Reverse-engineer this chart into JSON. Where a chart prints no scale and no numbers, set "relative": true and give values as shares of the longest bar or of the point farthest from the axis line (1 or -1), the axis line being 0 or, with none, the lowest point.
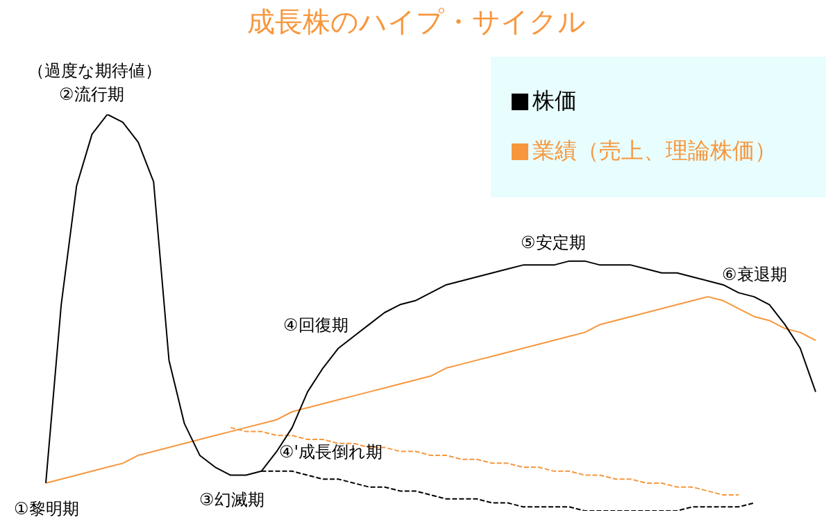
{
  "chart_data": {
    "type": "line",
    "title": "成長株のハイプ・サイクル",
    "relative": true,
    "legend": "top right",
    "marker": "none",
    "categories": [
      null,
      null,
      null,
      null,
      null,
      null,
      null,
      null,
      null,
      null,
      null,
      null,
      null,
      null,
      null,
      null,
      null,
      null,
      null,
      null,
      null,
      null,
      null,
      null,
      null,
      null,
      null,
      null,
      null,
      null,
      null,
      null,
      null,
      null,
      null,
      null,
      null,
      null,
      null,
      null,
      null,
      null,
      null,
      null,
      null,
      null,
      null,
      null,
      null,
      null,
      null
    ],
    "series": [
      {
        "name": "株価",
        "color": "#000000",
        "line_style": "solid",
        "values": [
          0.07,
          0.52,
          0.82,
          0.95,
          1.0,
          0.98,
          0.93,
          0.83,
          0.38,
          0.22,
          0.14,
          0.11,
          0.09,
          0.09,
          0.1,
          0.15,
          0.21,
          0.3,
          0.36,
          0.41,
          0.44,
          0.47,
          0.5,
          0.52,
          0.53,
          0.55,
          0.57,
          0.58,
          0.59,
          0.6,
          0.61,
          0.62,
          0.62,
          0.62,
          0.63,
          0.63,
          0.62,
          0.62,
          0.62,
          0.61,
          0.6,
          0.6,
          0.59,
          0.58,
          0.57,
          0.55,
          0.54,
          0.52,
          0.47,
          0.41,
          0.3
        ]
      },
      {
        "name": "業績（売上、理論株価）",
        "color": "#f7963c",
        "line_style": "solid",
        "values": [
          0.07,
          0.08,
          0.09,
          0.1,
          0.11,
          0.12,
          0.14,
          0.15,
          0.16,
          0.17,
          0.18,
          0.19,
          0.2,
          0.21,
          0.22,
          0.23,
          0.25,
          0.26,
          0.27,
          0.28,
          0.29,
          0.3,
          0.31,
          0.32,
          0.33,
          0.34,
          0.36,
          0.37,
          0.38,
          0.39,
          0.4,
          0.41,
          0.42,
          0.43,
          0.44,
          0.45,
          0.47,
          0.48,
          0.49,
          0.5,
          0.51,
          0.52,
          0.53,
          0.54,
          0.53,
          0.51,
          0.49,
          0.48,
          0.46,
          0.45,
          0.43
        ]
      },
      {
        "color": "#f7963c",
        "line_style": "dashed",
        "values": [
          null,
          null,
          null,
          null,
          null,
          null,
          null,
          null,
          null,
          null,
          null,
          null,
          0.21,
          0.2,
          0.2,
          0.19,
          0.19,
          0.18,
          0.18,
          0.17,
          0.17,
          0.16,
          0.16,
          0.15,
          0.15,
          0.14,
          0.14,
          0.13,
          0.13,
          0.12,
          0.12,
          0.11,
          0.11,
          0.1,
          0.1,
          0.09,
          0.09,
          0.08,
          0.08,
          0.07,
          0.07,
          0.06,
          0.06,
          0.05,
          0.04,
          0.04,
          null,
          null,
          null,
          null,
          null
        ]
      },
      {
        "color": "#000000",
        "line_style": "dashed",
        "values": [
          null,
          null,
          null,
          null,
          null,
          null,
          null,
          null,
          null,
          null,
          null,
          null,
          null,
          null,
          0.1,
          0.1,
          0.1,
          0.09,
          0.08,
          0.08,
          0.07,
          0.06,
          0.06,
          0.05,
          0.05,
          0.04,
          0.03,
          0.03,
          0.03,
          0.02,
          0.02,
          0.01,
          0.01,
          0.01,
          0.01,
          0,
          0,
          0,
          0,
          0,
          0,
          0,
          0.01,
          0.01,
          0.01,
          0.01,
          0.02,
          null,
          null,
          null,
          null
        ]
      }
    ],
    "annotations": [
      "（過度な期待値）",
      "②流行期",
      "①黎明期",
      "③幻滅期",
      "④'成長倒れ期",
      "④回復期",
      "⑤安定期",
      "⑥衰退期"
    ]
  }
}
